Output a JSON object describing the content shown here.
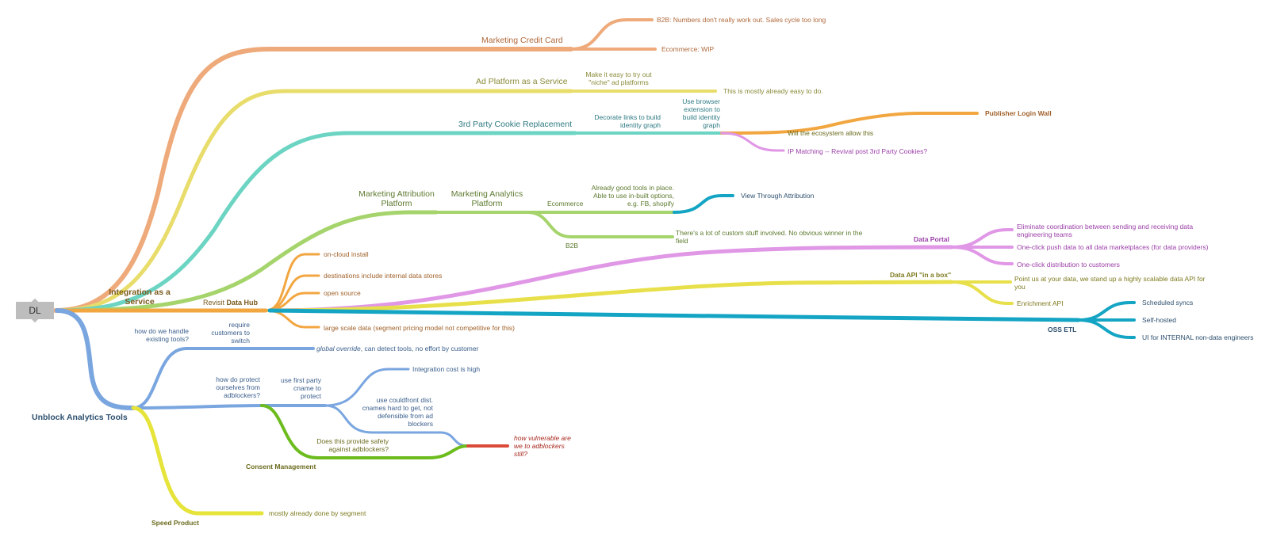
{
  "root": {
    "label": "DL"
  },
  "branches": {
    "integration_service": "Integration as a Service",
    "unblock_analytics": "Unblock Analytics Tools"
  },
  "marketing_credit_card": {
    "title": "Marketing Credit Card",
    "b2b": "B2B: Numbers don't really work out. Sales cycle too long",
    "ecommerce": "Ecommerce: WIP"
  },
  "ad_platform": {
    "title": "Ad Platform as a Service",
    "niche": "Make it easy to try out \"niche\" ad platforms",
    "easy": "This is mostly already easy to do."
  },
  "cookie": {
    "title": "3rd Party Cookie Replacement",
    "decorate": "Decorate links to build identity graph",
    "browser_ext": "Use browser extension to build identity graph",
    "publisher_wall": "Publisher Login Wall",
    "ecosystem": "Will the ecosystem allow this",
    "ip_matching": "IP Matching -- Revival post 3rd Party Cookies?"
  },
  "attribution": {
    "title": "Marketing Attribution Platform",
    "analytics": "Marketing Analytics Platform",
    "ecommerce": "Ecommerce",
    "good_tools": "Already good tools in place. Able to use in-built options, e.g. FB, shopify",
    "view_through": "View Through Attribution",
    "b2b": "B2B",
    "custom_stuff": "There's a lot of custom stuff involved. No obvious winner in the field"
  },
  "data_hub": {
    "prefix": "Revisit ",
    "title": "Data Hub",
    "on_cloud": "on-cloud install",
    "destinations": "destinations include internal data stores",
    "open_source": "open source",
    "large_scale": "large scale data (segment pricing model not competitive for this)"
  },
  "data_portal": {
    "title": "Data Portal",
    "eliminate": "Eliminate coordination between sending and receiving data engineering teams",
    "one_click_push": "One-click push data to all data marketplaces (for data providers)",
    "one_click_dist": "One-click distribution to customers"
  },
  "data_api": {
    "title": "Data API \"in a box\"",
    "point": "Point us at your data, we stand up a highly scalable data API for you",
    "enrichment": "Enrichment API"
  },
  "oss_etl": {
    "title": "OSS ETL",
    "scheduled": "Scheduled syncs",
    "self_hosted": "Self-hosted",
    "ui_internal": "UI for INTERNAL non-data engineers"
  },
  "existing_tools": {
    "question": "how do we handle existing tools?",
    "require": "require customers to switch",
    "override_em": "global override",
    "override_rest": ", can detect tools, no effort by customer"
  },
  "adblockers": {
    "question": "how do protect ourselves from adblockers?",
    "first_party": "use first party cname to protect",
    "integration_cost": "Integration cost is high",
    "cloudfront": "use couldfront dist. cnames hard to get, not defensible from ad blockers",
    "vulnerable": "how vulnerable are we to adblockers still?",
    "safety": "Does this provide safety against adblockers?",
    "consent": "Consent Management"
  },
  "speed": {
    "title": "Speed Product",
    "segment": "mostly already done by segment"
  },
  "colors": {
    "orange_peach": "#eeaa7a",
    "yellow_pale": "#e8dc6a",
    "teal": "#6cd4c2",
    "green": "#a6d46c",
    "orange": "#f2a640",
    "purple": "#e097e6",
    "yellow": "#e8e04a",
    "cyan": "#14a4c4",
    "blue": "#7aa6e0",
    "green_dark": "#6cbc1e",
    "yellow_bright": "#e6e43a",
    "red": "#d94a38",
    "node_gray": "#bdbdbd"
  }
}
